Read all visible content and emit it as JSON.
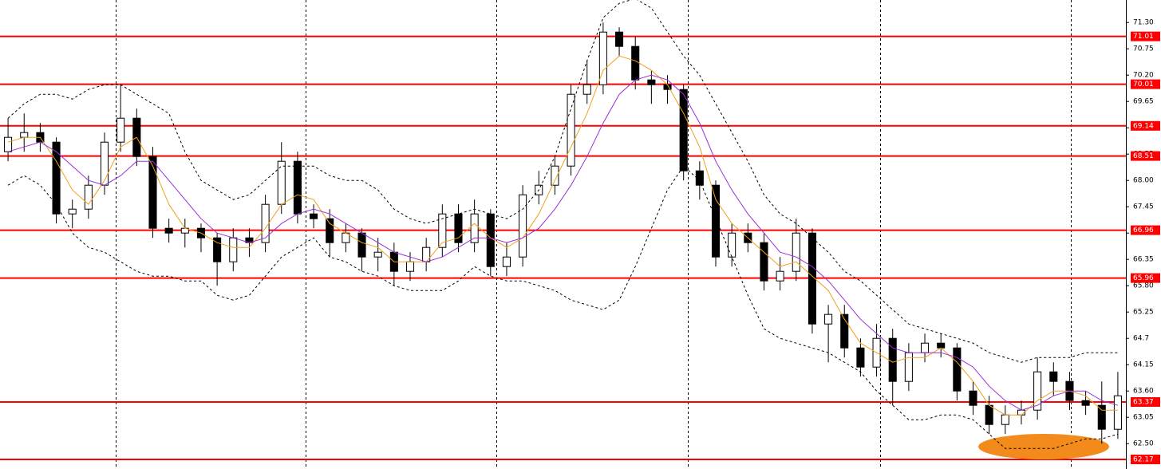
{
  "chart_data": {
    "type": "candlestick",
    "open": [
      68.6,
      68.9,
      69.0,
      68.8,
      67.3,
      67.4,
      67.9,
      68.8,
      69.3,
      68.5,
      67.0,
      66.9,
      67.0,
      66.8,
      66.3,
      66.8,
      66.7,
      67.5,
      68.4,
      67.3,
      67.2,
      66.7,
      66.9,
      66.4,
      66.5,
      66.1,
      66.3,
      66.6,
      67.3,
      66.7,
      67.3,
      66.2,
      66.4,
      67.7,
      67.9,
      68.3,
      69.8,
      70.0,
      71.1,
      70.8,
      70.1,
      70.0,
      69.9,
      68.2,
      67.9,
      66.4,
      66.9,
      66.7,
      65.9,
      66.1,
      66.9,
      65.0,
      65.2,
      64.5,
      64.1,
      64.7,
      63.8,
      64.4,
      64.6,
      64.5,
      63.6,
      63.3,
      62.9,
      63.1,
      63.2,
      64.0,
      63.8,
      63.4,
      63.3,
      62.8
    ],
    "high": [
      69.3,
      69.4,
      69.2,
      68.9,
      67.6,
      68.1,
      69.0,
      70.0,
      69.5,
      68.7,
      67.2,
      67.2,
      67.1,
      66.9,
      67.0,
      67.0,
      67.7,
      68.8,
      68.6,
      67.5,
      67.4,
      67.1,
      67.0,
      66.8,
      66.7,
      66.5,
      66.8,
      67.5,
      67.5,
      67.6,
      67.4,
      66.7,
      67.9,
      68.2,
      68.5,
      70.0,
      70.5,
      71.3,
      71.2,
      71.0,
      70.3,
      70.2,
      70.0,
      68.4,
      68.0,
      67.1,
      67.1,
      66.9,
      66.4,
      67.2,
      67.0,
      65.4,
      65.4,
      64.7,
      65.0,
      64.9,
      64.6,
      64.8,
      64.8,
      64.6,
      63.8,
      63.5,
      63.3,
      63.4,
      64.3,
      64.2,
      64.0,
      63.6,
      63.8,
      64.0
    ],
    "low": [
      68.4,
      68.6,
      68.6,
      67.1,
      67.0,
      67.2,
      67.7,
      68.6,
      68.3,
      66.8,
      66.7,
      66.6,
      66.5,
      65.8,
      66.1,
      66.4,
      66.5,
      67.3,
      67.1,
      67.0,
      66.4,
      66.5,
      66.1,
      66.1,
      65.8,
      65.9,
      66.1,
      66.4,
      66.5,
      66.5,
      66.0,
      66.0,
      66.2,
      67.5,
      67.7,
      68.1,
      69.6,
      69.8,
      70.6,
      69.9,
      69.6,
      69.6,
      68.0,
      67.6,
      66.2,
      66.2,
      66.5,
      65.7,
      65.7,
      65.9,
      64.8,
      64.2,
      64.3,
      63.9,
      63.9,
      63.3,
      63.6,
      64.2,
      64.3,
      63.4,
      63.1,
      62.7,
      62.7,
      62.9,
      63.0,
      63.5,
      63.2,
      63.1,
      62.5,
      62.6
    ],
    "close": [
      68.9,
      69.0,
      68.8,
      67.3,
      67.4,
      67.9,
      68.8,
      69.3,
      68.5,
      67.0,
      66.9,
      67.0,
      66.8,
      66.3,
      66.8,
      66.7,
      67.5,
      68.4,
      67.3,
      67.2,
      66.7,
      66.9,
      66.4,
      66.5,
      66.1,
      66.3,
      66.6,
      67.3,
      66.7,
      67.3,
      66.2,
      66.4,
      67.7,
      67.9,
      68.3,
      69.8,
      70.0,
      71.1,
      70.8,
      70.1,
      70.0,
      69.9,
      68.2,
      67.9,
      66.4,
      66.9,
      66.7,
      65.9,
      66.1,
      66.9,
      65.0,
      65.2,
      64.5,
      64.1,
      64.7,
      63.8,
      64.4,
      64.6,
      64.5,
      63.6,
      63.3,
      62.9,
      63.1,
      63.2,
      64.0,
      63.8,
      63.4,
      63.3,
      62.8,
      63.5
    ],
    "series": [
      {
        "color": "#f0a020",
        "values": [
          68.8,
          68.9,
          68.9,
          68.4,
          67.8,
          67.5,
          68.0,
          68.7,
          68.9,
          68.3,
          67.5,
          67.0,
          66.9,
          66.7,
          66.6,
          66.6,
          67.0,
          67.5,
          67.7,
          67.6,
          67.1,
          66.9,
          66.7,
          66.6,
          66.3,
          66.3,
          66.3,
          66.7,
          66.8,
          67.1,
          66.8,
          66.6,
          66.8,
          67.3,
          68.0,
          68.7,
          69.4,
          70.3,
          70.6,
          70.5,
          70.3,
          70.0,
          69.4,
          68.7,
          67.6,
          67.1,
          66.8,
          66.5,
          66.2,
          66.3,
          66.0,
          65.7,
          65.1,
          64.6,
          64.4,
          64.2,
          64.3,
          64.3,
          64.5,
          64.2,
          63.8,
          63.3,
          63.1,
          63.1,
          63.4,
          63.6,
          63.6,
          63.5,
          63.2,
          63.2
        ]
      },
      {
        "color": "#9a30d8",
        "values": [
          68.6,
          68.7,
          68.8,
          68.6,
          68.3,
          68.0,
          67.9,
          68.1,
          68.4,
          68.4,
          68.0,
          67.6,
          67.2,
          66.9,
          66.8,
          66.7,
          66.8,
          67.1,
          67.3,
          67.4,
          67.3,
          67.1,
          66.9,
          66.7,
          66.5,
          66.4,
          66.3,
          66.4,
          66.6,
          66.8,
          66.8,
          66.7,
          66.8,
          67.0,
          67.4,
          67.9,
          68.5,
          69.2,
          69.8,
          70.1,
          70.2,
          70.1,
          69.8,
          69.2,
          68.4,
          67.8,
          67.3,
          66.9,
          66.5,
          66.4,
          66.2,
          65.9,
          65.5,
          65.1,
          64.8,
          64.5,
          64.4,
          64.4,
          64.4,
          64.3,
          64.1,
          63.7,
          63.4,
          63.2,
          63.3,
          63.5,
          63.6,
          63.6,
          63.4,
          63.3
        ]
      },
      {
        "color": "#000000",
        "dashed": true,
        "values": [
          69.3,
          69.6,
          69.8,
          69.8,
          69.7,
          69.9,
          70.0,
          70.0,
          69.8,
          69.6,
          69.4,
          68.6,
          68.0,
          67.8,
          67.6,
          67.7,
          68.0,
          68.3,
          68.3,
          68.3,
          68.1,
          68.0,
          68.0,
          67.8,
          67.4,
          67.2,
          67.1,
          67.2,
          67.3,
          67.4,
          67.3,
          67.2,
          67.4,
          67.8,
          68.5,
          69.5,
          70.5,
          71.4,
          71.7,
          71.8,
          71.6,
          71.1,
          70.6,
          70.2,
          69.6,
          69.0,
          68.4,
          67.7,
          67.3,
          67.1,
          66.8,
          66.5,
          66.1,
          65.9,
          65.6,
          65.3,
          65.0,
          64.9,
          64.8,
          64.7,
          64.6,
          64.4,
          64.3,
          64.2,
          64.3,
          64.3,
          64.3,
          64.4,
          64.4,
          64.4
        ]
      },
      {
        "color": "#000000",
        "dashed": true,
        "values": [
          67.9,
          68.1,
          67.9,
          67.5,
          66.9,
          66.6,
          66.5,
          66.3,
          66.1,
          66.0,
          66.0,
          65.9,
          65.9,
          65.6,
          65.5,
          65.6,
          66.0,
          66.4,
          66.6,
          66.8,
          66.4,
          66.3,
          66.1,
          66.0,
          65.8,
          65.7,
          65.7,
          65.7,
          65.9,
          66.2,
          66.0,
          65.9,
          65.9,
          65.8,
          65.7,
          65.5,
          65.4,
          65.3,
          65.5,
          66.2,
          67.0,
          67.8,
          68.3,
          68.0,
          67.2,
          66.4,
          65.6,
          64.9,
          64.7,
          64.6,
          64.5,
          64.4,
          64.2,
          64.0,
          63.6,
          63.3,
          63.0,
          63.0,
          63.1,
          63.1,
          63.0,
          62.7,
          62.4,
          62.4,
          62.4,
          62.4,
          62.5,
          62.6,
          62.6,
          62.7
        ]
      }
    ],
    "levels": [
      71.01,
      70.01,
      69.14,
      68.51,
      66.96,
      65.96,
      63.37,
      62.17
    ],
    "level_color": "#ff0000",
    "ylim": [
      61.97,
      71.77
    ],
    "yticks": [
      {
        "value": 71.3,
        "label": "71.30"
      },
      70.75,
      {
        "value": 70.2,
        "label": "70.20"
      },
      69.65,
      69.1,
      68.55,
      {
        "value": 68.0,
        "label": "68.00"
      },
      67.45,
      66.9,
      66.35,
      {
        "value": 65.8,
        "label": "65.80"
      },
      65.25,
      64.7,
      64.15,
      {
        "value": 63.6,
        "label": "63.60"
      },
      63.05,
      {
        "value": 62.5,
        "label": "62.50"
      }
    ]
  }
}
